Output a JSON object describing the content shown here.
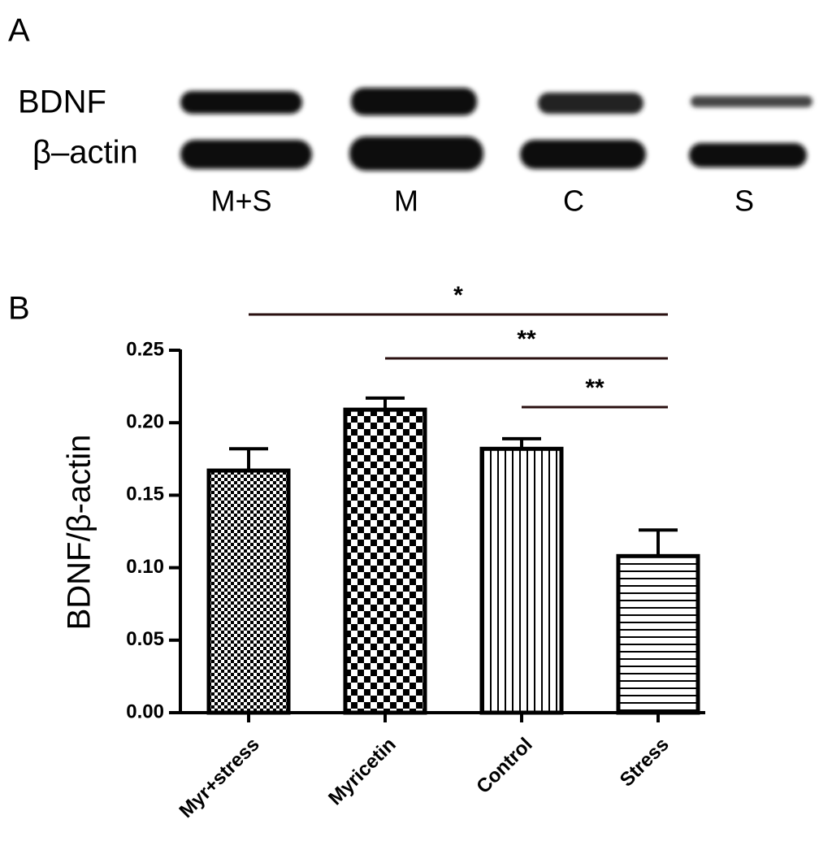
{
  "panels": {
    "a": "A",
    "b": "B"
  },
  "blot": {
    "rows": [
      "BDNF",
      "β–actin"
    ],
    "lanes": [
      "M+S",
      "M",
      "C",
      "S"
    ]
  },
  "chart_data": {
    "type": "bar",
    "ylabel": "BDNF/β-actin",
    "categories": [
      "Myr+stress",
      "Myricetin",
      "Control",
      "Stress"
    ],
    "values": [
      0.167,
      0.209,
      0.182,
      0.108
    ],
    "errors": [
      0.015,
      0.008,
      0.007,
      0.018
    ],
    "patterns": [
      "fine-check",
      "check",
      "vertical-lines",
      "horizontal-lines"
    ],
    "color": "#000000",
    "ylim": [
      0,
      0.25
    ],
    "yticks": [
      {
        "value": 0,
        "label": "0.00"
      },
      0.05,
      {
        "value": 0.1,
        "label": "0.10"
      },
      0.15,
      {
        "value": 0.2,
        "label": "0.20"
      },
      0.25
    ],
    "annotations": [
      {
        "text": "*",
        "from": "Myr+stress",
        "to": "Stress"
      },
      {
        "text": "**",
        "from": "Myricetin",
        "to": "Stress"
      },
      {
        "text": "**",
        "from": "Control",
        "to": "Stress"
      }
    ]
  }
}
